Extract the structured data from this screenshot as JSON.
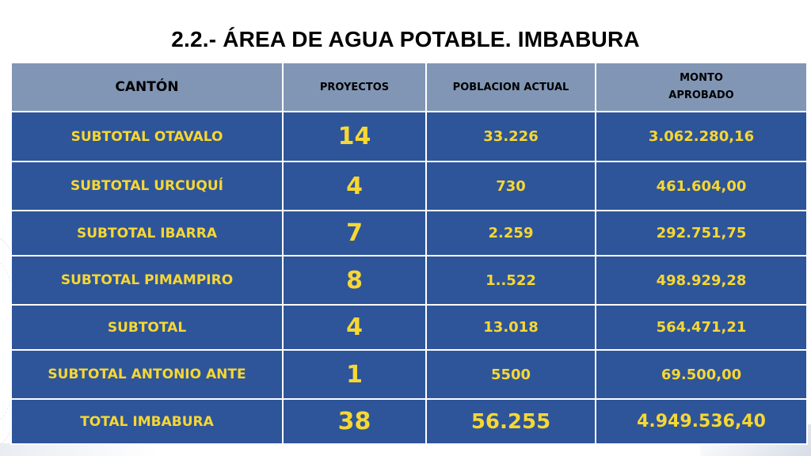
{
  "title": "2.2.- ÁREA DE AGUA POTABLE. IMBABURA",
  "table": {
    "headers": {
      "canton": "CANTÓN",
      "proyectos": "PROYECTOS",
      "poblacion": "POBLACION  ACTUAL",
      "monto_line1": "MONTO",
      "monto_line2": "APROBADO"
    },
    "rows": [
      {
        "canton": "SUBTOTAL OTAVALO",
        "proyectos": "14",
        "poblacion": "33.226",
        "monto": "3.062.280,16"
      },
      {
        "canton": "SUBTOTAL URCUQUÍ",
        "proyectos": "4",
        "poblacion": "730",
        "monto": "461.604,00"
      },
      {
        "canton": "SUBTOTAL IBARRA",
        "proyectos": "7",
        "poblacion": "2.259",
        "monto": "292.751,75"
      },
      {
        "canton": "SUBTOTAL PIMAMPIRO",
        "proyectos": "8",
        "poblacion": "1..522",
        "monto": "498.929,28"
      },
      {
        "canton": "SUBTOTAL",
        "proyectos": "4",
        "poblacion": "13.018",
        "monto": "564.471,21"
      },
      {
        "canton": "SUBTOTAL ANTONIO ANTE",
        "proyectos": "1",
        "poblacion": "5500",
        "monto": "69.500,00"
      },
      {
        "canton": "TOTAL IMBABURA",
        "proyectos": "38",
        "poblacion": "56.255",
        "monto": "4.949.536,40"
      }
    ]
  },
  "colors": {
    "header_bg": "#8196b5",
    "row_bg": "#2e5599",
    "row_text": "#f7d733"
  }
}
